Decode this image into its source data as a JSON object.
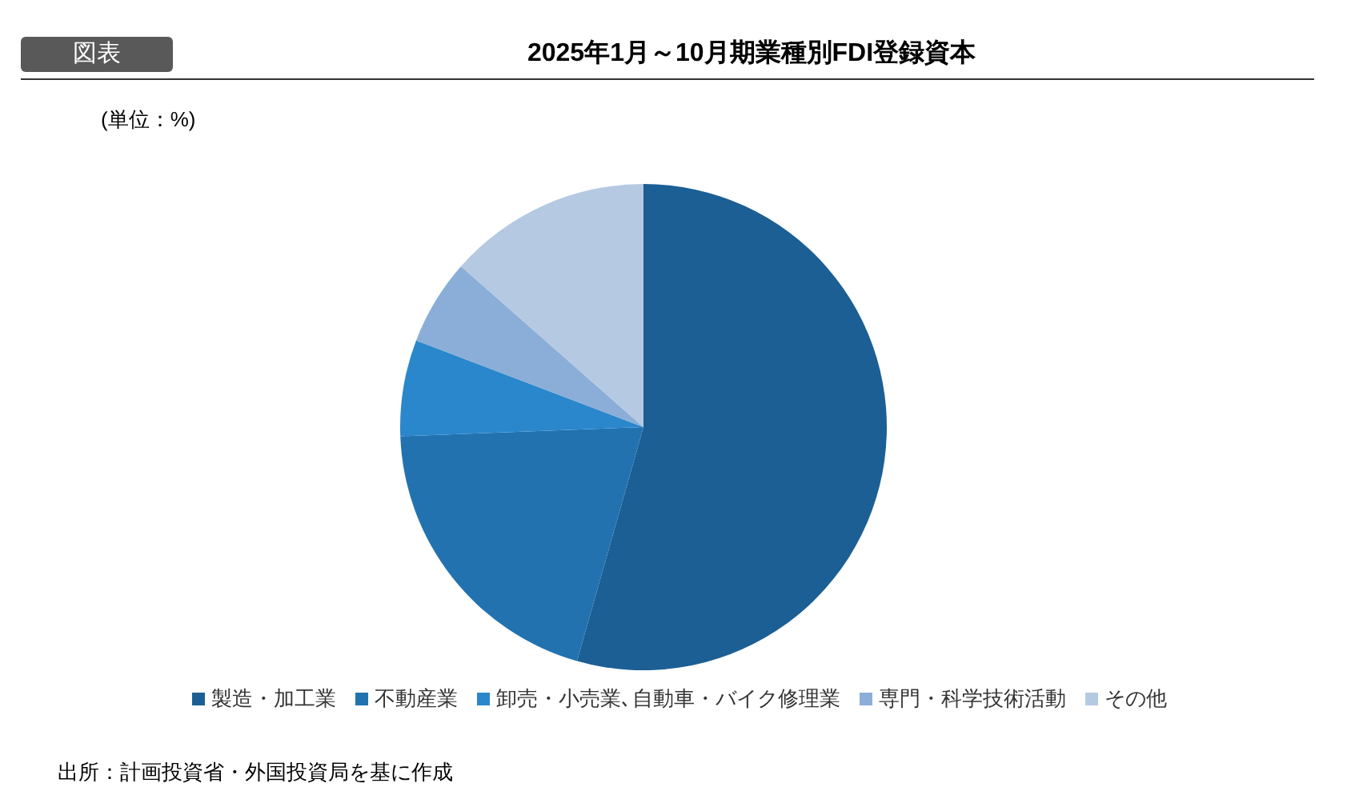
{
  "chart_data": {
    "type": "pie",
    "title": "2025年1月～10月期業種別FDI登録資本",
    "categories": [
      "製造・加工業",
      "不動産業",
      "卸売・小売業､自動車・バイク修理業",
      "専門・科学技術活動",
      "その他"
    ],
    "values": [
      54.4,
      20,
      6.4,
      5.7,
      13.5
    ],
    "colors": [
      "#1b5f94",
      "#2272b0",
      "#2a87cc",
      "#8aaed8",
      "#b5c9e2"
    ],
    "legend": "bottom",
    "annotations": [
      "図表",
      "(単位：%)",
      "出所：計画投資省・外国投資局を基に作成"
    ]
  }
}
